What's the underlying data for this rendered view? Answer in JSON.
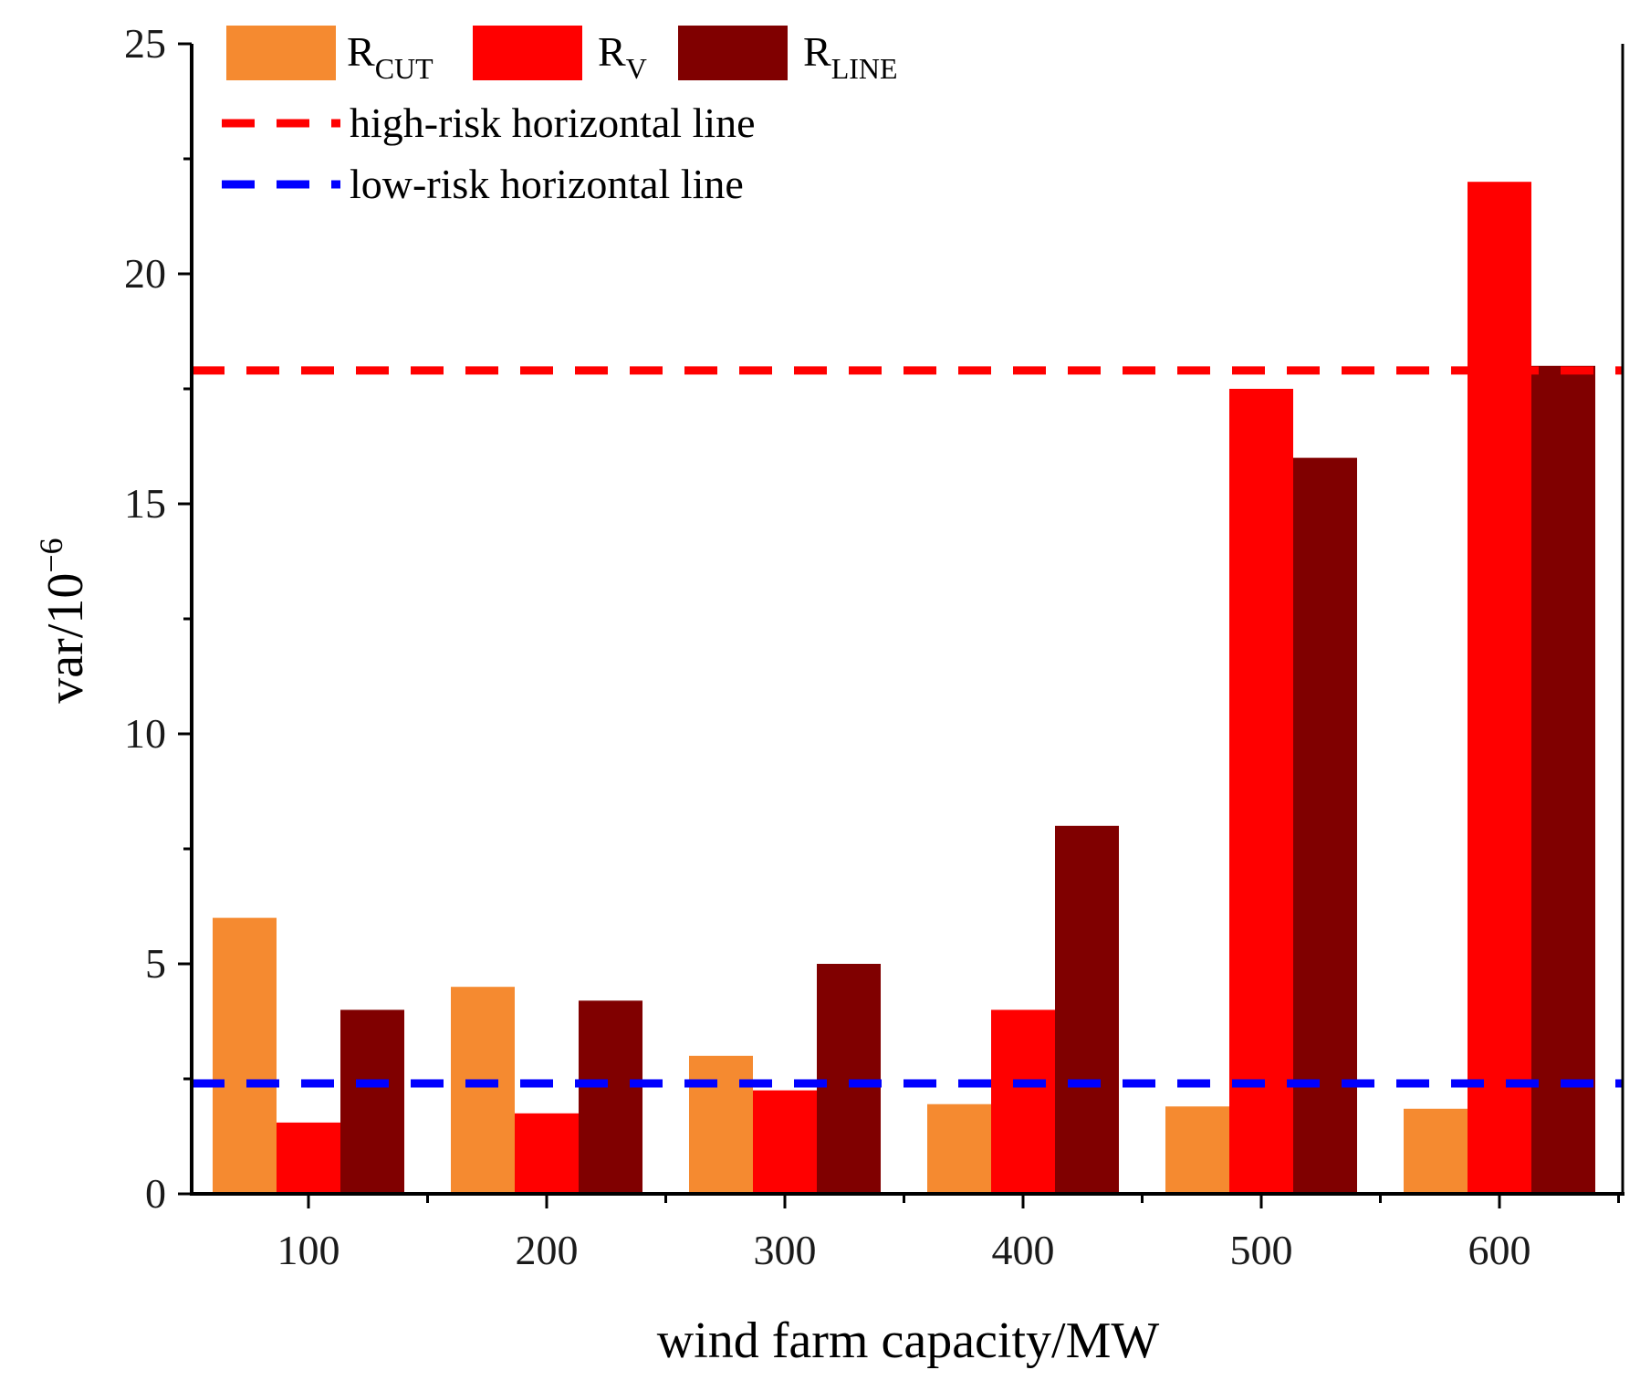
{
  "chart_data": {
    "type": "bar",
    "xlabel": "wind farm capacity/MW",
    "ylabel": "var/10",
    "ylabel_sup": "−6",
    "categories": [
      "100",
      "200",
      "300",
      "400",
      "500",
      "600"
    ],
    "ylim": [
      0,
      25
    ],
    "yticks": [
      "0",
      "5",
      "10",
      "15",
      "20",
      "25"
    ],
    "series": [
      {
        "name": "R",
        "name_sub": "CUT",
        "color": "#f58a30",
        "values": [
          6.0,
          4.5,
          3.0,
          1.95,
          1.9,
          1.85
        ]
      },
      {
        "name": "R",
        "name_sub": "V",
        "color": "#ff0000",
        "values": [
          1.55,
          1.75,
          2.25,
          4.0,
          17.5,
          22.0
        ]
      },
      {
        "name": "R",
        "name_sub": "LINE",
        "color": "#800000",
        "values": [
          4.0,
          4.2,
          5.0,
          8.0,
          16.0,
          18.0
        ]
      }
    ],
    "reference_lines": [
      {
        "label": "high-risk horizontal line",
        "value": 17.9,
        "color": "#ff0000"
      },
      {
        "label": "low-risk horizontal line",
        "value": 2.4,
        "color": "#0000ff"
      }
    ],
    "legend_position": "top-left",
    "grid": false
  }
}
